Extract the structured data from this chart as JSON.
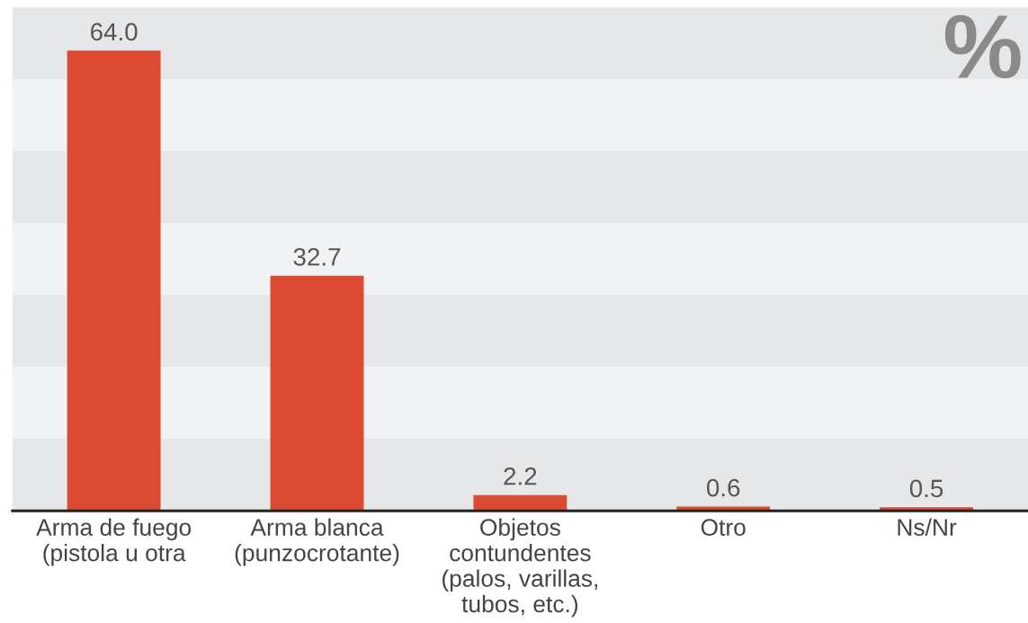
{
  "chart_data": {
    "type": "bar",
    "categories": [
      "Arma de fuego\n(pistola u otra",
      "Arma blanca\n(punzocrotante)",
      "Objetos\ncontundentes\n(palos, varillas,\ntubos, etc.)",
      "Otro",
      "Ns/Nr"
    ],
    "values": [
      64.0,
      32.7,
      2.2,
      0.6,
      0.5
    ],
    "color": "#dc4a32",
    "value_labels": [
      "64.0",
      "32.7",
      "2.2",
      "0.6",
      "0.5"
    ],
    "ylim": [
      0,
      70
    ],
    "tick_labels": "x",
    "grid": false,
    "bands": [
      {
        "axis": "y",
        "from": 0,
        "to": 10,
        "color": "#e6e7e9"
      },
      {
        "axis": "y",
        "from": 20,
        "to": 30,
        "color": "#e6e7e9"
      },
      {
        "axis": "y",
        "from": 40,
        "to": 50,
        "color": "#e6e7e9"
      },
      {
        "axis": "y",
        "from": 60,
        "to": 70,
        "color": "#e6e7e9"
      }
    ],
    "annotations": [
      "%"
    ]
  }
}
